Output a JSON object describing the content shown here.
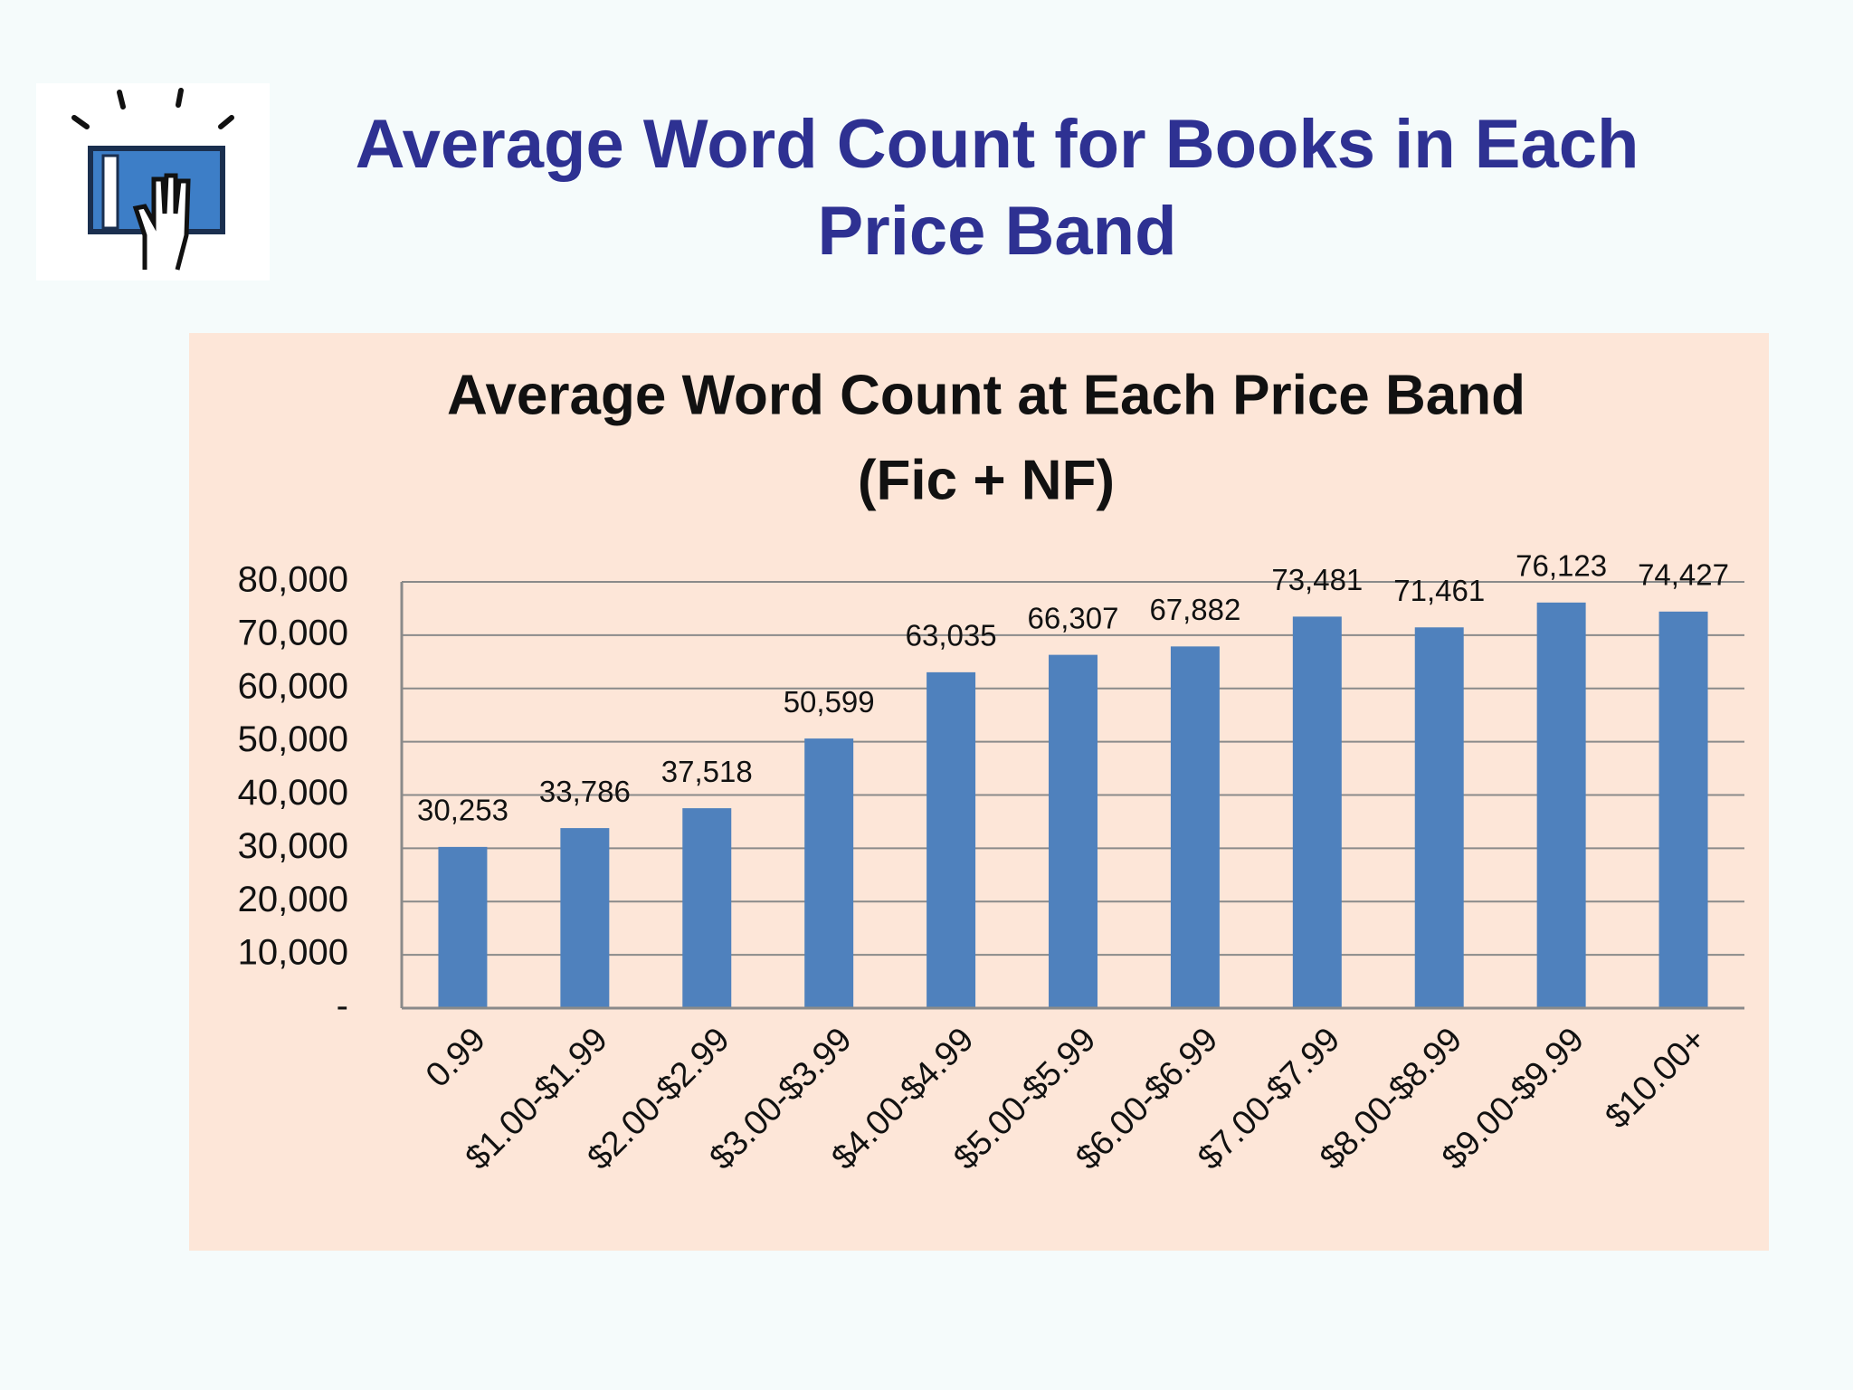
{
  "slide_title": "Average Word Count for Books in Each Price Band",
  "chart_data": {
    "type": "bar",
    "title": "Average Word Count at Each Price Band",
    "subtitle": "(Fic + NF)",
    "categories": [
      "0.99",
      "$1.00-$1.99",
      "$2.00-$2.99",
      "$3.00-$3.99",
      "$4.00-$4.99",
      "$5.00-$5.99",
      "$6.00-$6.99",
      "$7.00-$7.99",
      "$8.00-$8.99",
      "$9.00-$9.99",
      "$10.00+"
    ],
    "values": [
      30253,
      33786,
      37518,
      50599,
      63035,
      66307,
      67882,
      73481,
      71461,
      76123,
      74427
    ],
    "value_labels": [
      "30,253",
      "33,786",
      "37,518",
      "50,599",
      "63,035",
      "66,307",
      "67,882",
      "73,481",
      "71,461",
      "76,123",
      "74,427"
    ],
    "color": "#4f81bd",
    "ylim": [
      0,
      80000
    ],
    "yticks": [
      {
        "value": 0,
        "label": "-"
      },
      {
        "value": 10000,
        "label": "10,000"
      },
      {
        "value": 20000,
        "label": "20,000"
      },
      {
        "value": 30000,
        "label": "30,000"
      },
      {
        "value": 40000,
        "label": "40,000"
      },
      {
        "value": 50000,
        "label": "50,000"
      },
      {
        "value": 60000,
        "label": "60,000"
      },
      {
        "value": 70000,
        "label": "70,000"
      },
      {
        "value": 80000,
        "label": "80,000"
      }
    ],
    "grid": true
  }
}
